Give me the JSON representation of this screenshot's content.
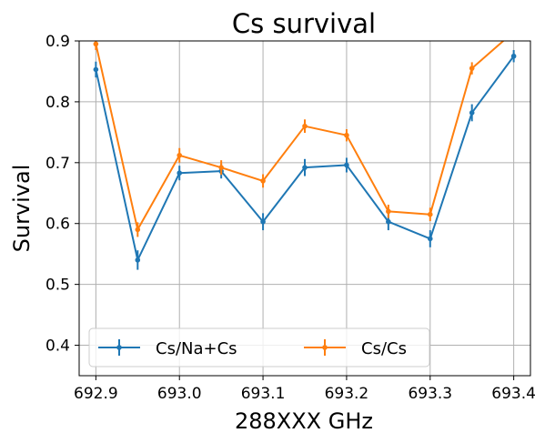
{
  "chart_data": {
    "type": "line",
    "title": "Cs survival",
    "xlabel": "288XXX GHz",
    "ylabel": "Survival",
    "xlim": [
      692.88,
      693.42
    ],
    "ylim": [
      0.35,
      0.9
    ],
    "x_ticks": [
      "692.9",
      "693.0",
      "693.1",
      "693.2",
      "693.3",
      "693.4"
    ],
    "y_ticks": [
      "0.4",
      "0.5",
      "0.6",
      "0.7",
      "0.8",
      "0.9"
    ],
    "grid": true,
    "legend_position": "lower-left",
    "x": [
      692.9,
      692.95,
      693.0,
      693.05,
      693.1,
      693.15,
      693.2,
      693.25,
      693.3,
      693.35,
      693.4
    ],
    "series": [
      {
        "name": "Cs/Na+Cs",
        "color": "#1f77b4",
        "values": [
          0.853,
          0.54,
          0.683,
          0.686,
          0.603,
          0.692,
          0.696,
          0.603,
          0.575,
          0.782,
          0.875
        ],
        "errors": [
          0.013,
          0.016,
          0.012,
          0.012,
          0.014,
          0.014,
          0.012,
          0.014,
          0.014,
          0.014,
          0.01
        ]
      },
      {
        "name": "Cs/Cs",
        "color": "#ff7f0e",
        "values": [
          0.895,
          0.59,
          0.712,
          0.692,
          0.67,
          0.76,
          0.745,
          0.62,
          0.615,
          0.855,
          0.915
        ],
        "errors": [
          0.01,
          0.012,
          0.012,
          0.012,
          0.011,
          0.011,
          0.01,
          0.011,
          0.011,
          0.01,
          0.01
        ]
      }
    ]
  }
}
